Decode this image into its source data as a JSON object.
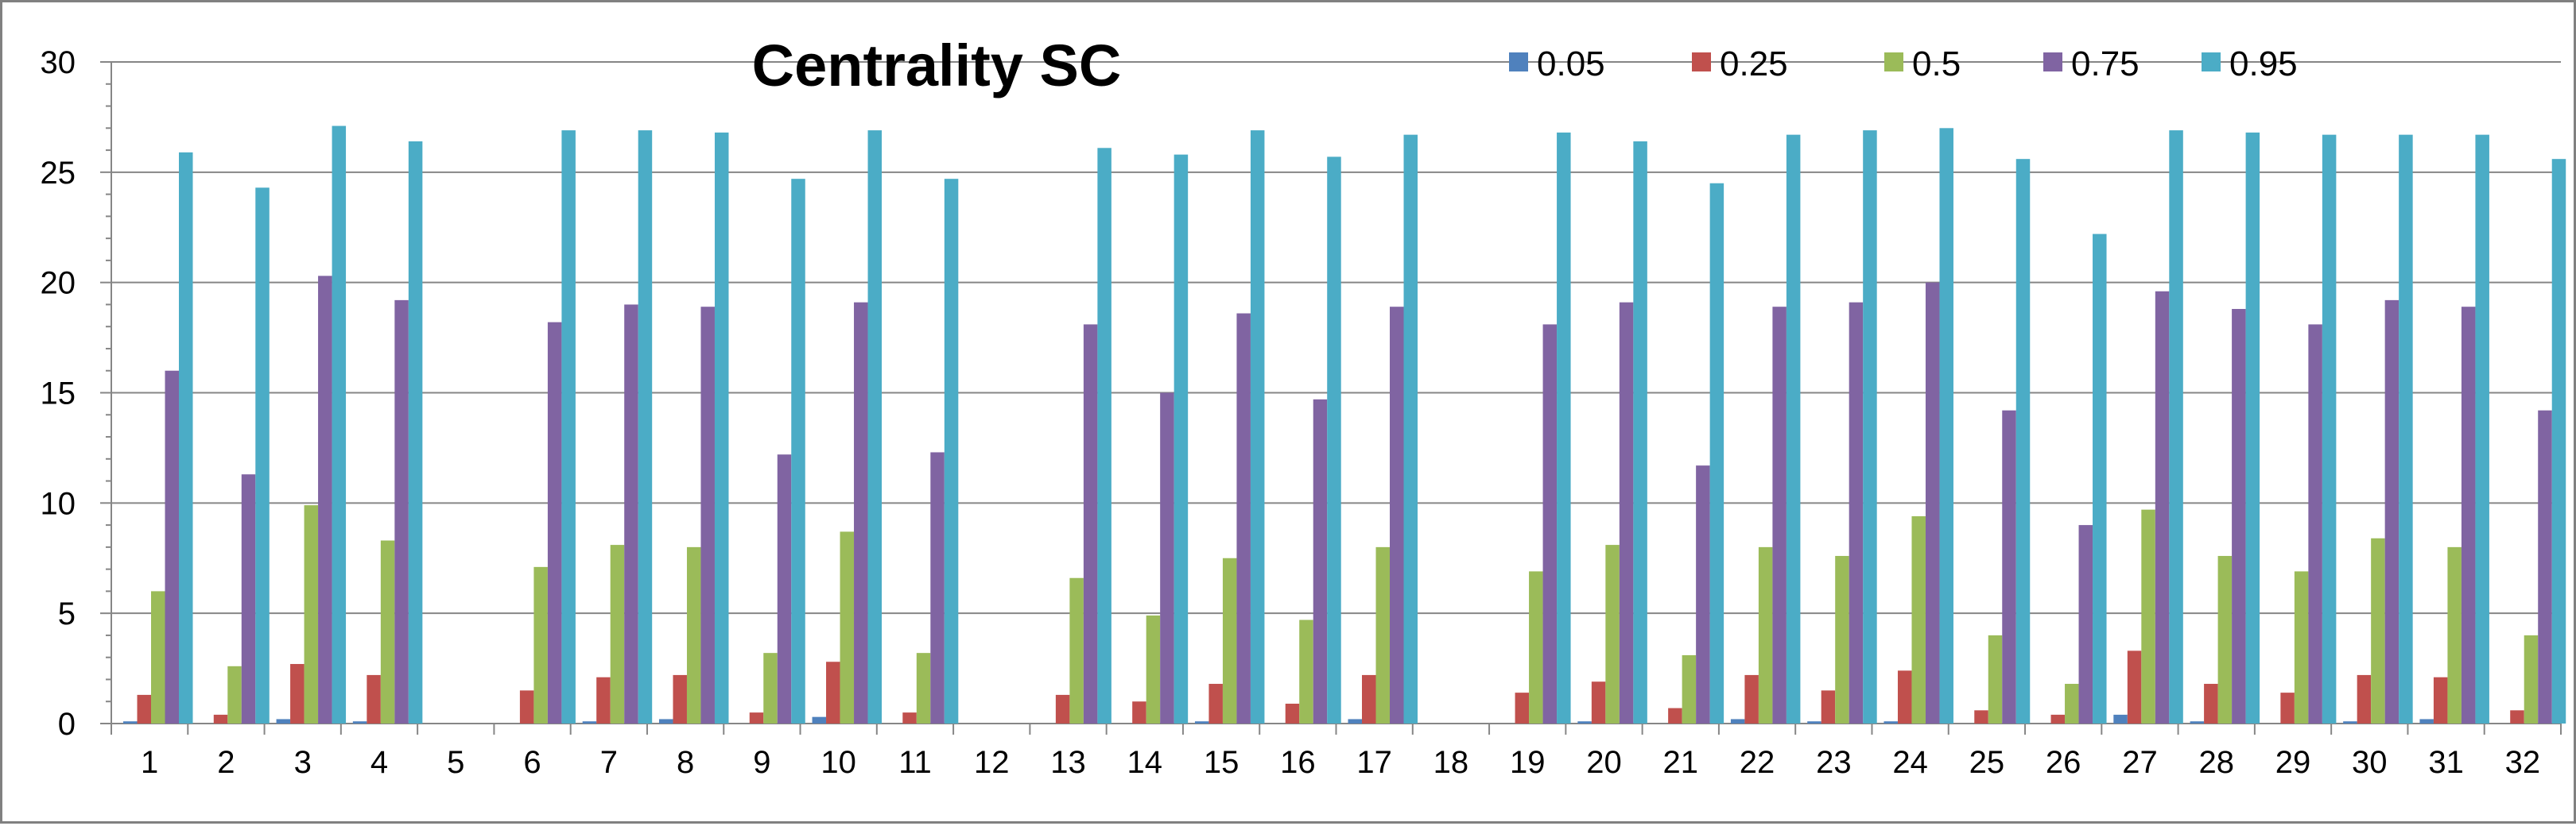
{
  "chart_data": {
    "type": "bar",
    "title": "Centrality SC",
    "xlabel": "",
    "ylabel": "",
    "ylim": [
      0,
      30
    ],
    "y_ticks": [
      0,
      5,
      10,
      15,
      20,
      25,
      30
    ],
    "grid": true,
    "legend_position": "top",
    "categories": [
      "1",
      "2",
      "3",
      "4",
      "5",
      "6",
      "7",
      "8",
      "9",
      "10",
      "11",
      "12",
      "13",
      "14",
      "15",
      "16",
      "17",
      "18",
      "19",
      "20",
      "21",
      "22",
      "23",
      "24",
      "25",
      "26",
      "27",
      "28",
      "29",
      "30",
      "31",
      "32"
    ],
    "series": [
      {
        "name": "0.05",
        "color": "#4F81BD",
        "values": [
          0.1,
          0,
          0.2,
          0.1,
          0,
          0,
          0.1,
          0.2,
          0,
          0.3,
          0,
          0,
          0,
          0,
          0.1,
          0,
          0.2,
          0,
          0,
          0.1,
          0,
          0.2,
          0.1,
          0.1,
          0,
          0,
          0.4,
          0.1,
          0,
          0.1,
          0.2,
          0
        ]
      },
      {
        "name": "0.25",
        "color": "#C0504D",
        "values": [
          1.3,
          0.4,
          2.7,
          2.2,
          0,
          1.5,
          2.1,
          2.2,
          0.5,
          2.8,
          0.5,
          0,
          1.3,
          1.0,
          1.8,
          0.9,
          2.2,
          0,
          1.4,
          1.9,
          0.7,
          2.2,
          1.5,
          2.4,
          0.6,
          0.4,
          3.3,
          1.8,
          1.4,
          2.2,
          2.1,
          0.6
        ]
      },
      {
        "name": "0.5",
        "color": "#9BBB59",
        "values": [
          6.0,
          2.6,
          9.9,
          8.3,
          0,
          7.1,
          8.1,
          8.0,
          3.2,
          8.7,
          3.2,
          0,
          6.6,
          4.9,
          7.5,
          4.7,
          8.0,
          0,
          6.9,
          8.1,
          3.1,
          8.0,
          7.6,
          9.4,
          4.0,
          1.8,
          9.7,
          7.6,
          6.9,
          8.4,
          8.0,
          4.0
        ]
      },
      {
        "name": "0.75",
        "color": "#8064A2",
        "values": [
          16.0,
          11.3,
          20.3,
          19.2,
          0,
          18.2,
          19.0,
          18.9,
          12.2,
          19.1,
          12.3,
          0,
          18.1,
          15.0,
          18.6,
          14.7,
          18.9,
          0,
          18.1,
          19.1,
          11.7,
          18.9,
          19.1,
          20.0,
          14.2,
          9.0,
          19.6,
          18.8,
          18.1,
          19.2,
          18.9,
          14.2
        ]
      },
      {
        "name": "0.95",
        "color": "#4BACC6",
        "values": [
          25.9,
          24.3,
          27.1,
          26.4,
          0,
          26.9,
          26.9,
          26.8,
          24.7,
          26.9,
          24.7,
          0,
          26.1,
          25.8,
          26.9,
          25.7,
          26.7,
          0,
          26.8,
          26.4,
          24.5,
          26.7,
          26.9,
          27.0,
          25.6,
          22.2,
          26.9,
          26.8,
          26.7,
          26.7,
          26.7,
          25.6
        ]
      }
    ]
  }
}
